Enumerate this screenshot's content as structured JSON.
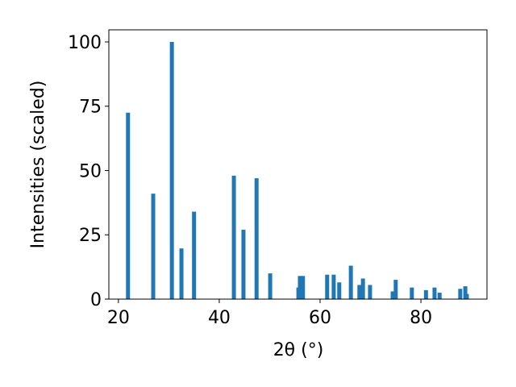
{
  "chart_data": {
    "type": "bar",
    "x_label": "2θ (°)",
    "y_label": "Intensities (scaled)",
    "x": [
      21.9,
      26.9,
      30.6,
      32.5,
      35.0,
      42.9,
      44.8,
      47.4,
      50.1,
      55.7,
      56.0,
      56.6,
      61.4,
      62.7,
      63.8,
      66.1,
      67.8,
      68.5,
      69.9,
      74.4,
      75.0,
      78.2,
      81.0,
      82.7,
      83.7,
      87.8,
      88.8,
      89.1
    ],
    "values": [
      72.5,
      41,
      100,
      19.7,
      34,
      48,
      27,
      47,
      10,
      4.5,
      9,
      9,
      9.5,
      9.5,
      6.5,
      13,
      5.5,
      8,
      5.5,
      3,
      7.5,
      4.5,
      3.5,
      4.5,
      2.5,
      4,
      5,
      2
    ],
    "color": "#1f77b4",
    "xlim": [
      18.1,
      93.1
    ],
    "xticks": [
      20,
      40,
      60,
      80
    ],
    "ylim": [
      0,
      104.7
    ],
    "yticks": [
      0,
      25,
      50,
      75,
      100
    ],
    "grid": false
  }
}
